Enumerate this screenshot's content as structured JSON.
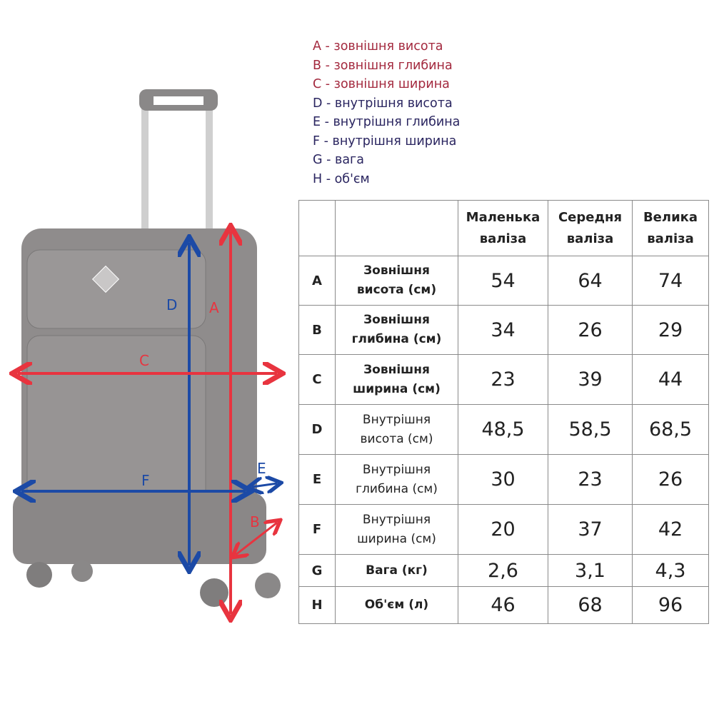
{
  "legend": [
    {
      "text": "A - зовнішня висота",
      "kind": "external"
    },
    {
      "text": "B - зовнішня глибина",
      "kind": "external"
    },
    {
      "text": "C - зовнішня ширина",
      "kind": "external"
    },
    {
      "text": "D - внутрішня висота",
      "kind": "internal"
    },
    {
      "text": "E - внутрішня глибина",
      "kind": "internal"
    },
    {
      "text": "F - внутрішня ширина",
      "kind": "internal"
    },
    {
      "text": "G - вага",
      "kind": "internal"
    },
    {
      "text": "H - об'єм",
      "kind": "internal"
    }
  ],
  "colors": {
    "external": "#a3293e",
    "internal": "#2a2560",
    "arrow_red": "#e8343f",
    "arrow_blue": "#1c4aa6",
    "suitcase": "#8c8a8a"
  },
  "diagram": {
    "labels": {
      "A": "A",
      "B": "B",
      "C": "C",
      "D": "D",
      "E": "E",
      "F": "F"
    }
  },
  "table": {
    "headers": [
      [
        "Маленька",
        "валіза"
      ],
      [
        "Середня",
        "валіза"
      ],
      [
        "Велика",
        "валіза"
      ]
    ],
    "rows": [
      {
        "letter": "A",
        "label": [
          "Зовнішня",
          "висота (см)"
        ],
        "bold": true,
        "values": [
          "54",
          "64",
          "74"
        ]
      },
      {
        "letter": "B",
        "label": [
          "Зовнішня",
          "глибина (см)"
        ],
        "bold": true,
        "values": [
          "34",
          "26",
          "29"
        ]
      },
      {
        "letter": "C",
        "label": [
          "Зовнішня",
          "ширина (см)"
        ],
        "bold": true,
        "values": [
          "23",
          "39",
          "44"
        ]
      },
      {
        "letter": "D",
        "label": [
          "Внутрішня",
          "висота (см)"
        ],
        "bold": false,
        "values": [
          "48,5",
          "58,5",
          "68,5"
        ]
      },
      {
        "letter": "E",
        "label": [
          "Внутрішня",
          "глибина (см)"
        ],
        "bold": false,
        "values": [
          "30",
          "23",
          "26"
        ]
      },
      {
        "letter": "F",
        "label": [
          "Внутрішня",
          "ширина (см)"
        ],
        "bold": false,
        "values": [
          "20",
          "37",
          "42"
        ]
      },
      {
        "letter": "G",
        "label": [
          "Вага (кг)"
        ],
        "bold": true,
        "values": [
          "2,6",
          "3,1",
          "4,3"
        ]
      },
      {
        "letter": "H",
        "label": [
          "Об'єм (л)"
        ],
        "bold": true,
        "values": [
          "46",
          "68",
          "96"
        ]
      }
    ]
  }
}
